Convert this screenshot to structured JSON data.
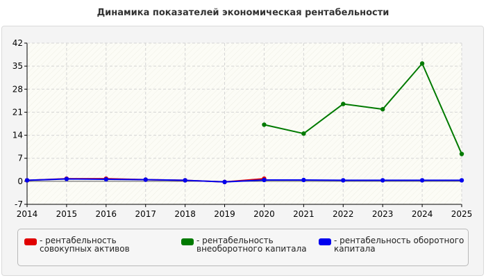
{
  "chart_data": {
    "type": "line",
    "title": "Динамика показателей экономическая рентабельности",
    "xlabel": "",
    "ylabel": "",
    "x": [
      2014,
      2015,
      2016,
      2017,
      2018,
      2019,
      2020,
      2021,
      2022,
      2023,
      2024,
      2025
    ],
    "x_ticks": [
      "2014",
      "2015",
      "2016",
      "2017",
      "2018",
      "2019",
      "2020",
      "2021",
      "2022",
      "2023",
      "2024",
      "2025"
    ],
    "y_ticks": [
      "-7",
      "0",
      "7",
      "14",
      "21",
      "28",
      "35",
      "42"
    ],
    "ylim": [
      -7,
      42
    ],
    "grid": true,
    "legend_position": "bottom",
    "series": [
      {
        "name": "- рентабельность совокупных активов",
        "color": "#e00000",
        "values": [
          0.3,
          0.8,
          0.8,
          0.5,
          0.3,
          -0.2,
          0.8,
          null,
          null,
          null,
          null,
          null
        ]
      },
      {
        "name": "- рентабельность внеоборотного капитала",
        "color": "#007a00",
        "values": [
          null,
          null,
          null,
          null,
          null,
          null,
          17.2,
          14.5,
          23.5,
          21.9,
          35.8,
          8.3
        ]
      },
      {
        "name": "- рентабельность оборотного капитала",
        "color": "#0000ee",
        "values": [
          0.3,
          0.7,
          0.6,
          0.5,
          0.3,
          -0.2,
          0.4,
          0.4,
          0.3,
          0.3,
          0.3,
          0.3
        ]
      }
    ]
  }
}
